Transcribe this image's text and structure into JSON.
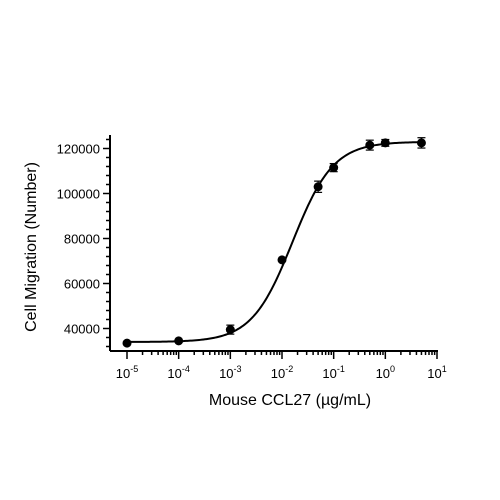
{
  "chart_data": {
    "type": "scatter",
    "title": "",
    "xlabel": "Mouse CCL27 (µg/mL)",
    "ylabel": "Cell Migration (Number)",
    "x_scale": "log",
    "xlim": [
      1e-05,
      10
    ],
    "ylim": [
      30000,
      126000
    ],
    "x_ticks": [
      {
        "value": 1e-05,
        "base": "10",
        "exp": "-5"
      },
      {
        "value": 0.0001,
        "base": "10",
        "exp": "-4"
      },
      {
        "value": 0.001,
        "base": "10",
        "exp": "-3"
      },
      {
        "value": 0.01,
        "base": "10",
        "exp": "-2"
      },
      {
        "value": 0.1,
        "base": "10",
        "exp": "-1"
      },
      {
        "value": 1,
        "base": "10",
        "exp": "0"
      },
      {
        "value": 10,
        "base": "10",
        "exp": "1"
      }
    ],
    "y_ticks": [
      {
        "value": 40000,
        "label": "40000"
      },
      {
        "value": 60000,
        "label": "60000"
      },
      {
        "value": 80000,
        "label": "80000"
      },
      {
        "value": 100000,
        "label": "100000"
      },
      {
        "value": 120000,
        "label": "120000"
      }
    ],
    "points": [
      {
        "x": 1e-05,
        "y": 33500,
        "err": 0
      },
      {
        "x": 0.0001,
        "y": 34500,
        "err": 0
      },
      {
        "x": 0.001,
        "y": 39500,
        "err": 2000
      },
      {
        "x": 0.01,
        "y": 70500,
        "err": 0
      },
      {
        "x": 0.05,
        "y": 103000,
        "err": 2500
      },
      {
        "x": 0.1,
        "y": 111500,
        "err": 1800
      },
      {
        "x": 0.5,
        "y": 121500,
        "err": 2200
      },
      {
        "x": 1,
        "y": 122500,
        "err": 1500
      },
      {
        "x": 5,
        "y": 122500,
        "err": 2300
      }
    ],
    "fit": {
      "model": "four-parameter logistic",
      "bottom": 34000,
      "top": 123000,
      "ec50": 0.016,
      "hill": 1.1
    },
    "grid": false,
    "legend": "none"
  }
}
